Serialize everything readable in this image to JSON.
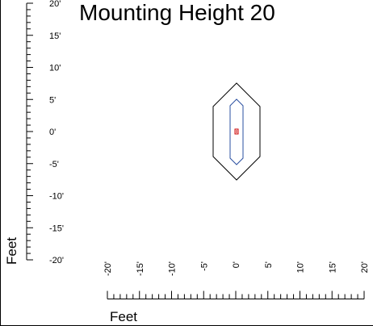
{
  "title": "Mounting Height 20",
  "y_axis": {
    "title": "Feet",
    "labels": [
      "20'",
      "15'",
      "10'",
      "5'",
      "0'",
      "-5'",
      "-10'",
      "-15'",
      "-20'"
    ]
  },
  "x_axis": {
    "title": "Feet",
    "labels": [
      "-20'",
      "-15'",
      "-10'",
      "-5'",
      "0'",
      "5'",
      "10'",
      "15'",
      "20'"
    ]
  },
  "contours": [
    {
      "name": "outer",
      "color": "#000000"
    },
    {
      "name": "inner",
      "color": "#2a4fa0"
    }
  ],
  "marker_color": "#cc0000"
}
